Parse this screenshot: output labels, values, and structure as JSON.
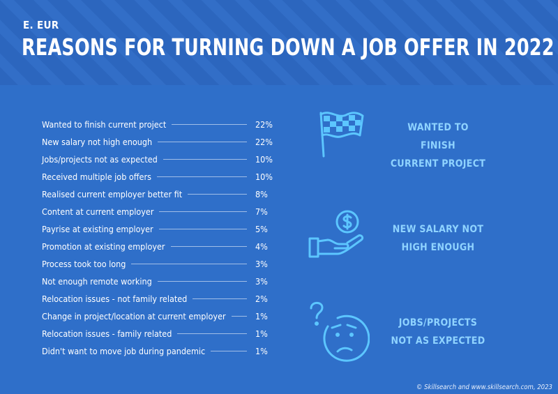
{
  "header": {
    "eyebrow": "E. EUR",
    "title": "REASONS FOR TURNING DOWN A JOB OFFER IN 2022"
  },
  "chart_data": {
    "type": "table",
    "title": "REASONS FOR TURNING DOWN A JOB OFFER IN 2022",
    "categories": [
      "Wanted to finish current project",
      "New salary not high enough",
      "Jobs/projects not as expected",
      "Received multiple job offers",
      "Realised current employer better fit",
      "Content at current employer",
      "Payrise at existing employer",
      "Promotion at existing employer",
      "Process took too long",
      "Not enough remote working",
      "Relocation issues - not family related",
      "Change in project/location at current employer",
      "Relocation issues - family related",
      "Didn't want to move job during pandemic"
    ],
    "values": [
      22,
      22,
      10,
      10,
      8,
      7,
      5,
      4,
      3,
      3,
      2,
      1,
      1,
      1
    ],
    "value_labels": [
      "22%",
      "22%",
      "10%",
      "10%",
      "8%",
      "7%",
      "5%",
      "4%",
      "3%",
      "3%",
      "2%",
      "1%",
      "1%",
      "1%"
    ],
    "unit": "%"
  },
  "callouts": [
    {
      "icon": "checkered-flag-icon",
      "line1": "WANTED TO FINISH",
      "line2": "CURRENT PROJECT"
    },
    {
      "icon": "hand-coin-icon",
      "line1": "NEW SALARY NOT",
      "line2": "HIGH ENOUGH"
    },
    {
      "icon": "confused-face-icon",
      "line1": "JOBS/PROJECTS",
      "line2": "NOT AS EXPECTED"
    }
  ],
  "footer": "© Skillsearch and www.skillsearch.com, 2023",
  "colors": {
    "background": "#2f6fc9",
    "header": "#2c66be",
    "accent": "#8fd3ff",
    "icon": "#5cc6ff"
  }
}
